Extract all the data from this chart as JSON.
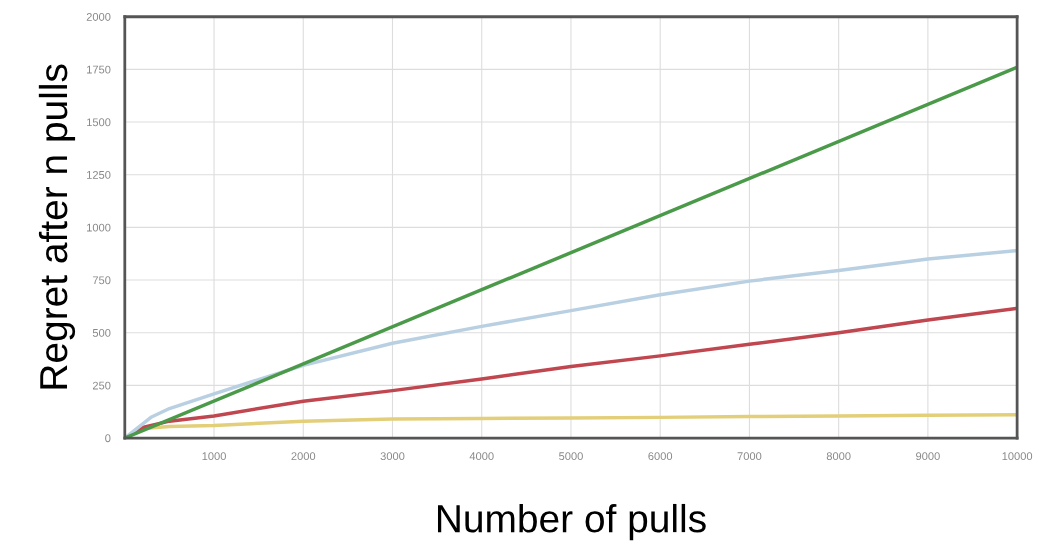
{
  "chart_data": {
    "type": "line",
    "xlabel": "Number of pulls",
    "ylabel": "Regret after n pulls",
    "xlim": [
      0,
      10000
    ],
    "ylim": [
      0,
      2000
    ],
    "xticks": [
      1000,
      2000,
      3000,
      4000,
      5000,
      6000,
      7000,
      8000,
      9000,
      10000
    ],
    "yticks": [
      0,
      250,
      500,
      750,
      1000,
      1250,
      1500,
      1750,
      2000
    ],
    "grid": true,
    "series": [
      {
        "color": "#e3cf7a",
        "x": [
          0,
          200,
          500,
          1000,
          2000,
          3000,
          4000,
          5000,
          6000,
          7000,
          8000,
          9000,
          10000
        ],
        "values": [
          0,
          45,
          55,
          60,
          80,
          90,
          93,
          95,
          98,
          102,
          105,
          108,
          110
        ]
      },
      {
        "color": "#c0474f",
        "x": [
          0,
          200,
          500,
          1000,
          2000,
          3000,
          4000,
          5000,
          6000,
          7000,
          8000,
          9000,
          10000
        ],
        "values": [
          0,
          50,
          80,
          105,
          175,
          225,
          280,
          340,
          390,
          445,
          500,
          560,
          615
        ]
      },
      {
        "color": "#b8d0e2",
        "x": [
          0,
          300,
          500,
          1000,
          2000,
          3000,
          4000,
          5000,
          6000,
          7000,
          8000,
          9000,
          10000
        ],
        "values": [
          0,
          100,
          140,
          210,
          345,
          450,
          530,
          605,
          680,
          745,
          795,
          850,
          890
        ]
      },
      {
        "color": "#4a9a4a",
        "x": [
          0,
          10000
        ],
        "values": [
          0,
          1760
        ]
      }
    ]
  }
}
